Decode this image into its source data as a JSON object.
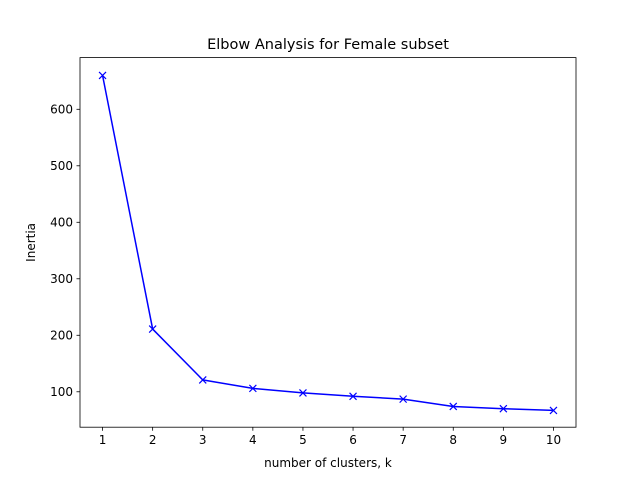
{
  "chart_data": {
    "type": "line",
    "title": "Elbow Analysis for Female subset",
    "xlabel": "number of clusters, k",
    "ylabel": "Inertia",
    "x": [
      1,
      2,
      3,
      4,
      5,
      6,
      7,
      8,
      9,
      10
    ],
    "series": [
      {
        "values": [
          660,
          211,
          121,
          106,
          98,
          92,
          87,
          74,
          70,
          67
        ],
        "color": "#0000ff",
        "marker": "x"
      }
    ],
    "xlim": [
      0.55,
      10.45
    ],
    "ylim": [
      37.3,
      691.5
    ],
    "xticks": [
      "1",
      "2",
      "3",
      "4",
      "5",
      "6",
      "7",
      "8",
      "9",
      "10"
    ],
    "yticks": [
      "100",
      "200",
      "300",
      "400",
      "500",
      "600"
    ],
    "grid": false,
    "legend": "none"
  }
}
